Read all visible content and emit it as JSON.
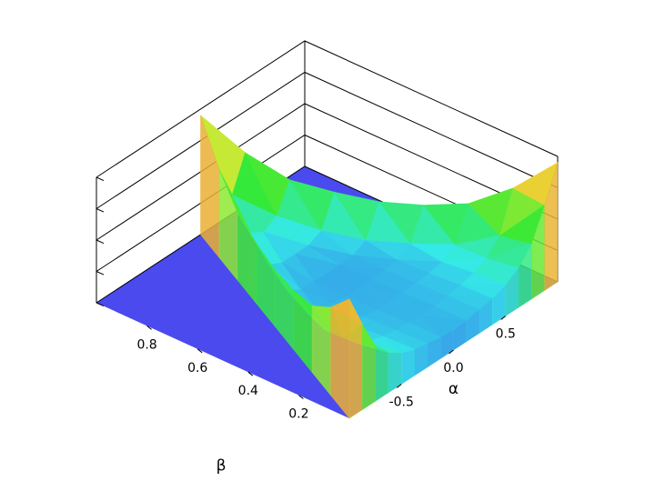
{
  "chart_data": {
    "type": "surface3d",
    "x_label": "α",
    "y_label": "β",
    "alpha": [
      -1,
      -0.875,
      -0.75,
      -0.625,
      -0.5,
      -0.375,
      -0.25,
      -0.125,
      0,
      0.125,
      0.25,
      0.375,
      0.5,
      0.625,
      0.75,
      0.875,
      1
    ],
    "beta": [
      0,
      0.125,
      0.25,
      0.375,
      0.5,
      0.625,
      0.75,
      0.875,
      1
    ],
    "z": [
      [
        0.95,
        0.68,
        0.44,
        0.32,
        0.25,
        0.21,
        0.19,
        0.17,
        0.16,
        0.17,
        0.19,
        0.21,
        0.25,
        0.32,
        0.44,
        0.68,
        0.95
      ],
      [
        null,
        0.7,
        0.39,
        0.28,
        0.23,
        0.2,
        0.18,
        0.17,
        0.16,
        0.17,
        0.18,
        0.2,
        0.23,
        0.28,
        0.39,
        0.7,
        null
      ],
      [
        null,
        null,
        0.53,
        0.27,
        0.2,
        0.18,
        0.17,
        0.16,
        0.16,
        0.16,
        0.17,
        0.18,
        0.2,
        0.27,
        0.53,
        null,
        null
      ],
      [
        null,
        null,
        null,
        0.47,
        0.23,
        0.17,
        0.16,
        0.15,
        0.15,
        0.15,
        0.16,
        0.17,
        0.23,
        0.47,
        null,
        null,
        null
      ],
      [
        null,
        null,
        null,
        null,
        0.45,
        0.21,
        0.16,
        0.15,
        0.15,
        0.15,
        0.16,
        0.21,
        0.45,
        null,
        null,
        null,
        null
      ],
      [
        null,
        null,
        null,
        null,
        null,
        0.48,
        0.24,
        0.19,
        0.19,
        0.19,
        0.24,
        0.48,
        null,
        null,
        null,
        null,
        null
      ],
      [
        null,
        null,
        null,
        null,
        null,
        null,
        0.53,
        0.31,
        0.25,
        0.31,
        0.53,
        null,
        null,
        null,
        null,
        null,
        null
      ],
      [
        null,
        null,
        null,
        null,
        null,
        null,
        null,
        0.7,
        0.43,
        0.7,
        null,
        null,
        null,
        null,
        null,
        null,
        null
      ],
      [
        null,
        null,
        null,
        null,
        null,
        null,
        null,
        null,
        0.95,
        null,
        null,
        null,
        null,
        null,
        null,
        null,
        null
      ]
    ],
    "xlim": [
      -1,
      1
    ],
    "ylim": [
      0,
      1
    ],
    "zlim": [
      0,
      1
    ],
    "xticks": [
      -0.5,
      {
        "value": 0,
        "label": "0.0"
      },
      0.5
    ],
    "yticks": [
      0.2,
      0.4,
      0.6,
      0.8
    ],
    "zticks": [
      0,
      0.25,
      0.5,
      0.75,
      1
    ],
    "floor_color": "#4a4aee"
  }
}
